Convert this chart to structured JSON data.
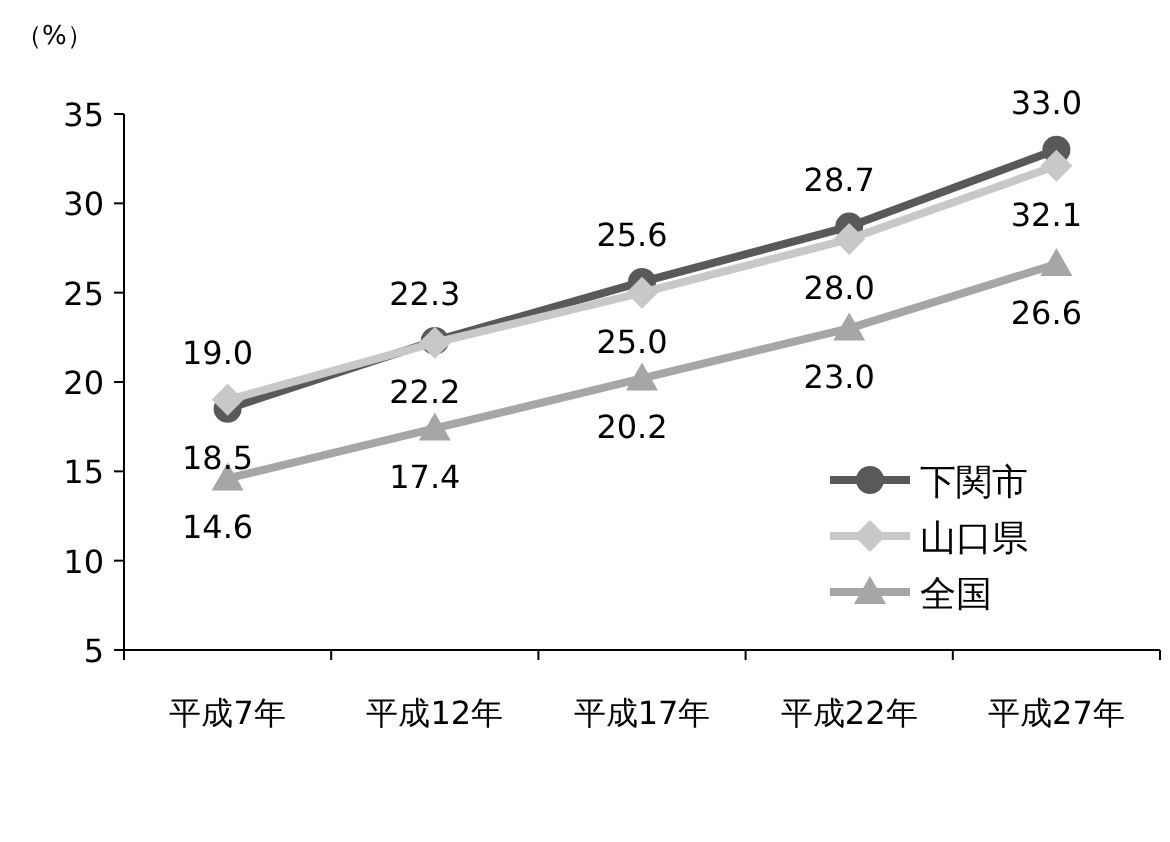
{
  "chart_data": {
    "type": "line",
    "ylabel": "（%）",
    "categories": [
      "平成7年",
      "平成12年",
      "平成17年",
      "平成22年",
      "平成27年"
    ],
    "series": [
      {
        "name": "下関市",
        "color": "#595959",
        "marker": "circle",
        "values": [
          18.5,
          22.3,
          25.6,
          28.7,
          33.0
        ],
        "value_labels": [
          "18.5",
          "22.3",
          "25.6",
          "28.7",
          "33.0"
        ]
      },
      {
        "name": "山口県",
        "color": "#c8c8c8",
        "marker": "diamond",
        "values": [
          19.0,
          22.2,
          25.0,
          28.0,
          32.1
        ],
        "value_labels": [
          "19.0",
          "22.2",
          "25.0",
          "28.0",
          "32.1"
        ]
      },
      {
        "name": "全国",
        "color": "#a6a6a6",
        "marker": "triangle",
        "values": [
          14.6,
          17.4,
          20.2,
          23.0,
          26.6
        ],
        "value_labels": [
          "14.6",
          "17.4",
          "20.2",
          "23.0",
          "26.6"
        ]
      }
    ],
    "ylim": [
      5,
      35
    ],
    "yticks": [
      5,
      10,
      15,
      20,
      25,
      30,
      35
    ],
    "legend": "bottom right",
    "grid": false
  }
}
